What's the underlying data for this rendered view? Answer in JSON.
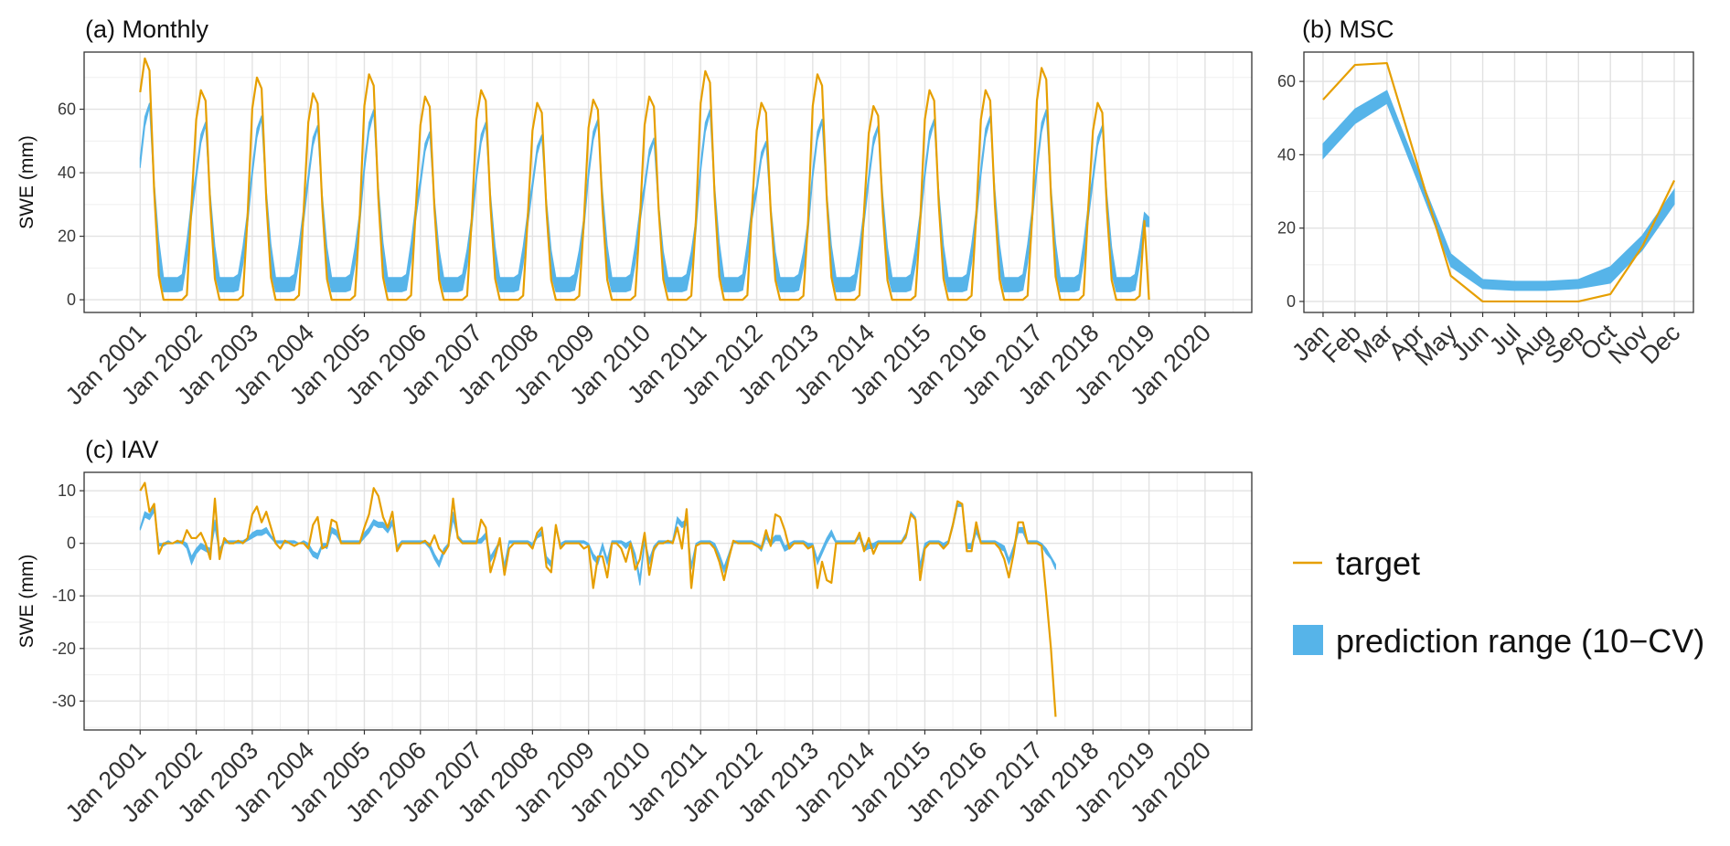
{
  "colors": {
    "target": "#E69F00",
    "prediction": "#56B4E9",
    "grid_major": "#e2e2e2",
    "grid_minor": "#efefef",
    "frame": "#333333"
  },
  "legend": {
    "items": [
      {
        "label": "target",
        "kind": "line",
        "color": "#E69F00"
      },
      {
        "label": "prediction range (10−CV)",
        "kind": "fill",
        "color": "#56B4E9"
      }
    ]
  },
  "chart_data": [
    {
      "id": "monthly",
      "type": "area",
      "title": "(a) Monthly",
      "xlabel": "",
      "ylabel": "SWE (mm)",
      "x_ticks": [
        "Jan 2001",
        "Jan 2002",
        "Jan 2003",
        "Jan 2004",
        "Jan 2005",
        "Jan 2006",
        "Jan 2007",
        "Jan 2008",
        "Jan 2009",
        "Jan 2010",
        "Jan 2011",
        "Jan 2012",
        "Jan 2013",
        "Jan 2014",
        "Jan 2015",
        "Jan 2016",
        "Jan 2017",
        "Jan 2018",
        "Jan 2019",
        "Jan 2020"
      ],
      "xlim": [
        "2000-01",
        "2020-11"
      ],
      "y_ticks": [
        0,
        20,
        40,
        60
      ],
      "ylim": [
        -4,
        78
      ],
      "grid": true,
      "start": "2001-01",
      "pattern_note": "seasonal cycle, months Jan..Dec each year 2001-2018",
      "years": [
        2001,
        2002,
        2003,
        2004,
        2005,
        2006,
        2007,
        2008,
        2009,
        2010,
        2011,
        2012,
        2013,
        2014,
        2015,
        2016,
        2017,
        2018
      ],
      "target_peaks": [
        76,
        66,
        70,
        65,
        71,
        64,
        66,
        62,
        63,
        64,
        72,
        62,
        71,
        61,
        66,
        66,
        73,
        62
      ],
      "prediction_peaks": [
        62,
        56,
        58,
        55,
        60,
        53,
        56,
        52,
        57,
        51,
        60,
        50,
        57,
        55,
        57,
        58,
        60,
        55
      ],
      "target_profile": [
        0.86,
        1.0,
        0.95,
        0.45,
        0.1,
        0,
        0,
        0,
        0,
        0,
        0.02,
        0.4
      ],
      "prediction_lower_profile": [
        0.67,
        0.88,
        0.98,
        0.55,
        0.15,
        0.08,
        0.07,
        0.07,
        0.07,
        0.08,
        0.2,
        0.42
      ],
      "prediction_upper_profile": [
        0.72,
        0.93,
        1.0,
        0.6,
        0.3,
        0.15,
        0.14,
        0.14,
        0.14,
        0.17,
        0.3,
        0.5
      ],
      "series_end": {
        "target_last": 0,
        "prediction_last_lower": 23,
        "prediction_last_upper": 26
      }
    },
    {
      "id": "msc",
      "type": "area",
      "title": "(b) MSC",
      "xlabel": "",
      "ylabel": "",
      "categories": [
        "Jan",
        "Feb",
        "Mar",
        "Apr",
        "May",
        "Jun",
        "Jul",
        "Aug",
        "Sep",
        "Oct",
        "Nov",
        "Dec"
      ],
      "y_ticks": [
        0,
        20,
        40,
        60
      ],
      "ylim": [
        -3,
        68
      ],
      "grid": true,
      "series": [
        {
          "name": "target",
          "values": [
            55,
            64.5,
            65,
            36,
            7,
            0,
            0,
            0,
            0,
            2,
            15,
            33
          ]
        },
        {
          "name": "prediction range (10−CV)",
          "lower": [
            39,
            48.5,
            54,
            32,
            9.5,
            3.5,
            3,
            3,
            3.5,
            5,
            14,
            26.5
          ],
          "upper": [
            43,
            52.5,
            57.5,
            35,
            13,
            6,
            5.5,
            5.5,
            6,
            9.5,
            18,
            30.5
          ]
        }
      ]
    },
    {
      "id": "iav",
      "type": "line",
      "title": "(c) IAV",
      "xlabel": "",
      "ylabel": "SWE (mm)",
      "x_ticks": [
        "Jan 2001",
        "Jan 2002",
        "Jan 2003",
        "Jan 2004",
        "Jan 2005",
        "Jan 2006",
        "Jan 2007",
        "Jan 2008",
        "Jan 2009",
        "Jan 2010",
        "Jan 2011",
        "Jan 2012",
        "Jan 2013",
        "Jan 2014",
        "Jan 2015",
        "Jan 2016",
        "Jan 2017",
        "Jan 2018",
        "Jan 2019",
        "Jan 2020"
      ],
      "xlim": [
        "2000-01",
        "2020-11"
      ],
      "y_ticks": [
        -30,
        -20,
        -10,
        0,
        10
      ],
      "ylim": [
        -35.5,
        13.5
      ],
      "grid": true,
      "start": "2001-01",
      "target": [
        10,
        11.5,
        6,
        7.5,
        -2,
        0,
        0,
        0,
        0.5,
        0,
        2.5,
        1,
        1,
        2,
        0,
        -3,
        8.5,
        -3,
        1,
        0,
        0,
        0.5,
        0,
        1,
        5.5,
        7,
        4,
        6,
        3,
        0,
        -1,
        0.5,
        0,
        -0.5,
        0,
        0,
        -1,
        3.5,
        5,
        -1,
        -0.5,
        4.5,
        4,
        0,
        0,
        0,
        0,
        0,
        3,
        5.5,
        10.5,
        9,
        5,
        3,
        6,
        -1.5,
        0,
        0,
        0,
        0,
        0,
        0.5,
        -0.5,
        1.5,
        -1,
        -2,
        -0.5,
        8.5,
        1,
        0,
        0,
        0,
        0,
        4.5,
        3,
        -5.5,
        -2.5,
        1,
        -6,
        -1,
        0,
        0,
        0,
        0,
        -1,
        2,
        3,
        -4.5,
        -5.5,
        3.5,
        -1,
        0,
        0,
        0,
        0,
        -1,
        -0.5,
        -8.5,
        -2.5,
        -2.5,
        -6.5,
        0,
        0,
        -1,
        -3.5,
        0,
        -5,
        -3,
        2,
        -6,
        -1,
        0,
        0,
        0.5,
        0,
        3,
        -1,
        6.5,
        -8.5,
        -0.5,
        0,
        0,
        0,
        -1,
        -3.5,
        -7,
        -3,
        0.5,
        0,
        0,
        0,
        0,
        -0.5,
        -1,
        2.5,
        -0.5,
        5.5,
        5,
        2.5,
        -1,
        0,
        0,
        0,
        -1,
        -0.5,
        -8.5,
        -3.5,
        -7,
        -7.5,
        0,
        0,
        0,
        0,
        0,
        2,
        -1.5,
        1,
        -2,
        0,
        0,
        0,
        0,
        0,
        0,
        1.5,
        5.5,
        4.5,
        -7,
        -1,
        0,
        0,
        0,
        -1,
        0,
        3.5,
        8,
        7.5,
        -1.5,
        -1.5,
        4,
        0,
        0,
        0,
        0,
        -1,
        -3,
        -6.5,
        -2,
        4,
        4,
        0,
        0,
        0,
        -0.5,
        -10,
        -20,
        -33
      ],
      "prediction_lower": [
        2.5,
        5,
        4.5,
        6,
        -0.5,
        -0.5,
        0,
        0,
        0,
        0,
        -1,
        -4,
        -2,
        -1,
        -1.5,
        -2,
        3,
        -2,
        0,
        0,
        0,
        0,
        0,
        0.5,
        1,
        1.5,
        1.5,
        2,
        1,
        0,
        0,
        0,
        0,
        0,
        0,
        0,
        -1,
        -2.5,
        -3,
        -0.5,
        -1,
        2,
        1.5,
        0,
        0,
        0,
        0,
        0,
        1,
        2,
        3.5,
        3,
        3,
        2,
        3.5,
        -1,
        0,
        0,
        0,
        0,
        0,
        0,
        -1,
        -3,
        -4.5,
        -2,
        -0.5,
        4.5,
        1,
        0,
        0,
        0,
        0,
        0,
        1,
        -3.5,
        -2,
        0,
        -5,
        0,
        0,
        0,
        0,
        0,
        -0.5,
        1,
        1.5,
        -3.5,
        -4.5,
        2.5,
        -0.5,
        0,
        0,
        0,
        0,
        0,
        -0.5,
        -3,
        -4,
        -1,
        -4,
        0,
        0,
        0,
        -1,
        0,
        -3,
        -8,
        0,
        -4,
        -1.5,
        0,
        0,
        0,
        0,
        4,
        3,
        3.5,
        -5,
        -0.5,
        0,
        0,
        0,
        -1,
        -3,
        -5.5,
        -3,
        0,
        0,
        0,
        0,
        0,
        -0.5,
        -1.5,
        1,
        -0.5,
        0.5,
        0.5,
        -1.5,
        -1,
        0,
        0,
        0,
        -1,
        -0.5,
        -4,
        -2,
        0,
        1.5,
        0,
        0,
        0,
        0,
        0,
        1,
        -1.5,
        -1,
        -1,
        0,
        0,
        0,
        0,
        0,
        0,
        1,
        5.5,
        4.5,
        -5,
        -1,
        0,
        0,
        0,
        -1,
        0,
        3,
        7,
        7,
        -1,
        -1,
        2,
        0,
        0,
        0,
        0,
        -1,
        -1.5,
        -4,
        -1.5,
        2,
        2,
        0,
        0,
        0,
        -0.5,
        -2,
        -3,
        -5
      ],
      "prediction_upper": [
        3,
        6,
        5.5,
        7,
        0,
        0,
        0.5,
        0,
        0.5,
        0.5,
        0,
        -2.5,
        -1,
        0,
        -0.5,
        -1,
        4.5,
        -1,
        0.5,
        0.5,
        0.5,
        0.5,
        0.5,
        1,
        2,
        2.5,
        2.5,
        3,
        1.5,
        0.5,
        0.5,
        0.5,
        0.5,
        0.5,
        0,
        0.5,
        0,
        -1.5,
        -2,
        0,
        0,
        3,
        2.5,
        0.5,
        0.5,
        0.5,
        0.5,
        0.5,
        2,
        3,
        4.5,
        4,
        4,
        3,
        4.5,
        -0.5,
        0.5,
        0.5,
        0.5,
        0.5,
        0.5,
        0.5,
        0,
        -2,
        -3.5,
        -1,
        0,
        6,
        1.5,
        0.5,
        0.5,
        0.5,
        0.5,
        1,
        2,
        -2.5,
        -1,
        0.5,
        -4,
        0.5,
        0.5,
        0.5,
        0.5,
        0.5,
        0,
        1.5,
        2.5,
        -2.5,
        -3.5,
        3,
        0,
        0.5,
        0.5,
        0.5,
        0.5,
        0.5,
        0,
        -2,
        -3,
        0,
        -3,
        0.5,
        0.5,
        0.5,
        0,
        0.5,
        -2,
        -6.5,
        1,
        -3,
        -0.5,
        0.5,
        0.5,
        0.5,
        0.5,
        5,
        4,
        4.5,
        -4,
        0,
        0.5,
        0.5,
        0.5,
        0,
        -2,
        -4.5,
        -2,
        0.5,
        0.5,
        0.5,
        0.5,
        0.5,
        0,
        -0.5,
        2,
        0.5,
        1.5,
        1.5,
        -0.5,
        0,
        0.5,
        0.5,
        0.5,
        0,
        0,
        -3,
        -1,
        1,
        2.5,
        0.5,
        0.5,
        0.5,
        0.5,
        0.5,
        2,
        -0.5,
        0,
        0,
        0.5,
        0.5,
        0.5,
        0.5,
        0.5,
        0.5,
        2,
        6,
        5,
        -4,
        0,
        0.5,
        0.5,
        0.5,
        0,
        0.5,
        4,
        7.5,
        7.5,
        0,
        0,
        3,
        0.5,
        0.5,
        0.5,
        0.5,
        0,
        -0.5,
        -3,
        -0.5,
        3,
        3,
        0.5,
        0.5,
        0.5,
        0,
        -1,
        -2.5,
        -4
      ]
    }
  ]
}
